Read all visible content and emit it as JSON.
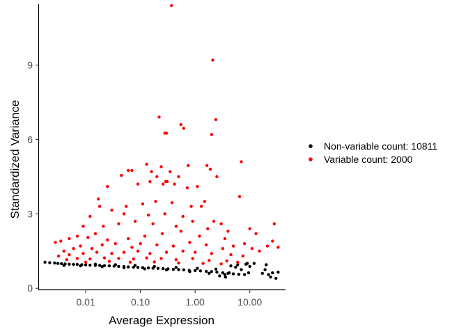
{
  "chart_data": {
    "type": "scatter",
    "xlabel": "Average Expression",
    "ylabel": "Standardized Variance",
    "x_scale": "log10",
    "xlim": [
      0.0014,
      45
    ],
    "ylim": [
      -0.05,
      11.4
    ],
    "x_ticks": [
      {
        "value": 0.01,
        "label": "0.01"
      },
      {
        "value": 0.1,
        "label": "0.10"
      },
      {
        "value": 1,
        "label": "1.00"
      },
      {
        "value": 10,
        "label": "10.00"
      }
    ],
    "y_ticks": [
      {
        "value": 0,
        "label": "0"
      },
      {
        "value": 3,
        "label": "3"
      },
      {
        "value": 6,
        "label": "6"
      },
      {
        "value": 9,
        "label": "9"
      }
    ],
    "grid": false,
    "legend_position": "right",
    "series": [
      {
        "name": "Non-variable count: 10811",
        "color": "#000000",
        "total_count": 10811,
        "points": [
          [
            0.0018,
            1.05
          ],
          [
            0.0022,
            1.03
          ],
          [
            0.0027,
            1.02
          ],
          [
            0.0031,
            1.0
          ],
          [
            0.0036,
            0.99
          ],
          [
            0.0042,
            0.98
          ],
          [
            0.005,
            0.97
          ],
          [
            0.006,
            0.96
          ],
          [
            0.007,
            0.96
          ],
          [
            0.0085,
            0.95
          ],
          [
            0.01,
            0.94
          ],
          [
            0.012,
            0.93
          ],
          [
            0.015,
            0.92
          ],
          [
            0.018,
            0.92
          ],
          [
            0.022,
            0.91
          ],
          [
            0.027,
            0.9
          ],
          [
            0.033,
            0.89
          ],
          [
            0.04,
            0.88
          ],
          [
            0.05,
            0.87
          ],
          [
            0.06,
            0.86
          ],
          [
            0.075,
            0.85
          ],
          [
            0.09,
            0.84
          ],
          [
            0.11,
            0.83
          ],
          [
            0.14,
            0.82
          ],
          [
            0.17,
            0.81
          ],
          [
            0.21,
            0.8
          ],
          [
            0.26,
            0.79
          ],
          [
            0.32,
            0.78
          ],
          [
            0.4,
            0.76
          ],
          [
            0.5,
            0.75
          ],
          [
            0.62,
            0.74
          ],
          [
            0.78,
            0.72
          ],
          [
            1.0,
            0.71
          ],
          [
            1.25,
            0.7
          ],
          [
            1.6,
            0.68
          ],
          [
            2.0,
            0.67
          ],
          [
            2.5,
            0.65
          ],
          [
            3.2,
            0.62
          ],
          [
            4.0,
            0.6
          ],
          [
            5.0,
            0.58
          ],
          [
            6.3,
            0.56
          ],
          [
            8.0,
            0.55
          ],
          [
            9.5,
            0.62
          ],
          [
            7.0,
            0.75
          ],
          [
            5.5,
            0.85
          ],
          [
            4.5,
            0.9
          ],
          [
            3.5,
            0.55
          ],
          [
            2.8,
            0.5
          ],
          [
            3.6,
            0.45
          ],
          [
            4.2,
            0.62
          ],
          [
            6.0,
            0.95
          ],
          [
            8.5,
            0.97
          ],
          [
            9.0,
            1.0
          ],
          [
            10.0,
            0.88
          ],
          [
            12.0,
            1.0
          ],
          [
            17.0,
            0.6
          ],
          [
            19.0,
            0.75
          ],
          [
            20.0,
            0.95
          ],
          [
            22.0,
            0.55
          ],
          [
            24.0,
            0.45
          ],
          [
            26.0,
            0.62
          ],
          [
            30.0,
            0.4
          ],
          [
            33.0,
            0.65
          ],
          [
            0.004,
            0.92
          ],
          [
            0.008,
            0.9
          ],
          [
            0.02,
            0.87
          ],
          [
            0.05,
            0.83
          ],
          [
            0.12,
            0.78
          ],
          [
            0.3,
            0.74
          ],
          [
            0.8,
            0.67
          ],
          [
            1.8,
            0.6
          ],
          [
            0.015,
            0.97
          ],
          [
            0.035,
            0.95
          ],
          [
            0.08,
            0.92
          ],
          [
            0.18,
            0.88
          ],
          [
            0.45,
            0.84
          ],
          [
            1.1,
            0.8
          ],
          [
            2.4,
            0.77
          ]
        ]
      },
      {
        "name": "Variable count: 2000",
        "color": "#ff0000",
        "total_count": 2000,
        "points": [
          [
            0.37,
            11.4
          ],
          [
            2.1,
            9.2
          ],
          [
            0.22,
            6.9
          ],
          [
            2.4,
            6.8
          ],
          [
            0.55,
            6.6
          ],
          [
            0.62,
            6.45
          ],
          [
            0.28,
            6.25
          ],
          [
            0.3,
            6.25
          ],
          [
            2.0,
            6.2
          ],
          [
            7.0,
            5.1
          ],
          [
            0.13,
            5.0
          ],
          [
            0.75,
            4.95
          ],
          [
            1.65,
            4.95
          ],
          [
            0.24,
            4.9
          ],
          [
            1.9,
            4.8
          ],
          [
            0.06,
            4.75
          ],
          [
            0.07,
            4.75
          ],
          [
            0.16,
            4.7
          ],
          [
            0.35,
            4.7
          ],
          [
            0.045,
            4.55
          ],
          [
            0.2,
            4.5
          ],
          [
            0.31,
            4.3
          ],
          [
            0.5,
            4.5
          ],
          [
            2.5,
            4.5
          ],
          [
            0.025,
            4.1
          ],
          [
            0.09,
            4.2
          ],
          [
            0.15,
            4.3
          ],
          [
            0.26,
            4.2
          ],
          [
            0.29,
            4.3
          ],
          [
            0.42,
            4.2
          ],
          [
            0.72,
            4.05
          ],
          [
            1.1,
            4.1
          ],
          [
            0.017,
            3.6
          ],
          [
            0.018,
            3.3
          ],
          [
            0.03,
            3.15
          ],
          [
            0.055,
            3.3
          ],
          [
            0.11,
            3.4
          ],
          [
            0.19,
            3.5
          ],
          [
            0.38,
            3.45
          ],
          [
            0.85,
            3.3
          ],
          [
            1.3,
            3.3
          ],
          [
            1.5,
            3.5
          ],
          [
            6.5,
            3.7
          ],
          [
            0.012,
            2.9
          ],
          [
            0.05,
            3.0
          ],
          [
            0.14,
            2.95
          ],
          [
            0.28,
            3.0
          ],
          [
            0.6,
            2.9
          ],
          [
            0.9,
            2.7
          ],
          [
            2.2,
            2.7
          ],
          [
            3.0,
            2.6
          ],
          [
            0.009,
            2.5
          ],
          [
            0.015,
            2.2
          ],
          [
            0.021,
            2.5
          ],
          [
            0.04,
            2.6
          ],
          [
            0.08,
            2.7
          ],
          [
            0.17,
            2.6
          ],
          [
            0.45,
            2.5
          ],
          [
            1.7,
            2.4
          ],
          [
            4.0,
            2.3
          ],
          [
            10.0,
            2.4
          ],
          [
            0.005,
            2.0
          ],
          [
            0.007,
            2.1
          ],
          [
            0.0035,
            1.9
          ],
          [
            0.0028,
            1.85
          ],
          [
            0.011,
            2.05
          ],
          [
            0.025,
            1.95
          ],
          [
            0.06,
            2.0
          ],
          [
            0.12,
            2.1
          ],
          [
            0.25,
            2.2
          ],
          [
            0.55,
            2.3
          ],
          [
            1.2,
            2.1
          ],
          [
            3.5,
            2.0
          ],
          [
            13.0,
            2.2
          ],
          [
            28.0,
            2.6
          ],
          [
            21.0,
            1.7
          ],
          [
            26.0,
            1.9
          ],
          [
            33.0,
            1.65
          ],
          [
            15.0,
            1.5
          ],
          [
            11.0,
            1.6
          ],
          [
            8.0,
            1.8
          ],
          [
            0.004,
            1.5
          ],
          [
            0.006,
            1.6
          ],
          [
            0.008,
            1.7
          ],
          [
            0.013,
            1.6
          ],
          [
            0.02,
            1.75
          ],
          [
            0.035,
            1.8
          ],
          [
            0.07,
            1.65
          ],
          [
            0.1,
            1.8
          ],
          [
            0.2,
            1.75
          ],
          [
            0.4,
            1.7
          ],
          [
            0.8,
            1.85
          ],
          [
            1.6,
            1.75
          ],
          [
            3.2,
            1.6
          ],
          [
            5.0,
            1.7
          ],
          [
            0.0032,
            1.3
          ],
          [
            0.005,
            1.35
          ],
          [
            0.009,
            1.4
          ],
          [
            0.016,
            1.45
          ],
          [
            0.03,
            1.4
          ],
          [
            0.05,
            1.45
          ],
          [
            0.09,
            1.5
          ],
          [
            0.15,
            1.4
          ],
          [
            0.3,
            1.45
          ],
          [
            0.6,
            1.5
          ],
          [
            1.0,
            1.45
          ],
          [
            2.0,
            1.4
          ],
          [
            4.5,
            1.35
          ],
          [
            7.5,
            1.3
          ],
          [
            0.0045,
            1.15
          ],
          [
            0.007,
            1.2
          ],
          [
            0.012,
            1.18
          ],
          [
            0.022,
            1.22
          ],
          [
            0.04,
            1.2
          ],
          [
            0.075,
            1.18
          ],
          [
            0.13,
            1.22
          ],
          [
            0.24,
            1.2
          ],
          [
            0.45,
            1.15
          ],
          [
            0.9,
            1.2
          ],
          [
            1.8,
            1.12
          ],
          [
            3.8,
            1.1
          ],
          [
            6.0,
            1.05
          ],
          [
            0.01,
            1.05
          ],
          [
            0.027,
            1.08
          ],
          [
            0.065,
            1.05
          ],
          [
            0.18,
            1.06
          ],
          [
            0.5,
            1.02
          ],
          [
            1.4,
            1.0
          ],
          [
            3.0,
            0.98
          ]
        ]
      }
    ]
  }
}
